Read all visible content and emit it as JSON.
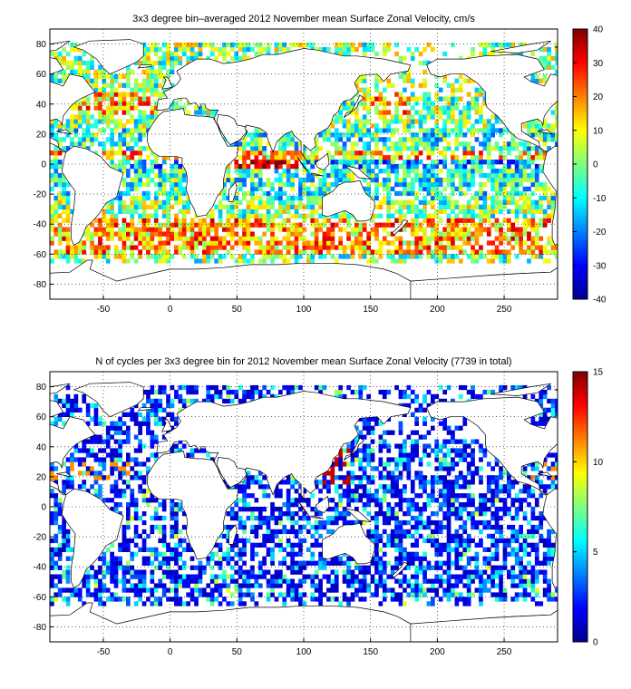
{
  "colors": {
    "jet": [
      "#00008F",
      "#0000FF",
      "#007FFF",
      "#00FFFF",
      "#7FFF7F",
      "#FFFF00",
      "#FF7F00",
      "#FF0000",
      "#7F0000"
    ],
    "land_outline": "#000000",
    "grid": "#000000"
  },
  "chart_data": [
    {
      "type": "heatmap",
      "title": "3x3 degree bin–averaged 2012 November mean Surface Zonal Velocity, cm/s",
      "xlim": [
        -90,
        290
      ],
      "ylim": [
        -90,
        90
      ],
      "x_ticks": [
        -50,
        0,
        50,
        100,
        150,
        200,
        250
      ],
      "y_ticks": [
        80,
        60,
        40,
        20,
        0,
        -20,
        -40,
        -60,
        -80
      ],
      "colorbar": {
        "min": -40,
        "max": 40,
        "ticks": [
          40,
          30,
          20,
          10,
          0,
          -10,
          -20,
          -30,
          -40
        ]
      },
      "grid": true,
      "bin_size_deg": 3,
      "field": "zonal_velocity"
    },
    {
      "type": "heatmap",
      "title": "N of cycles per 3x3 degree bin for 2012 November mean Surface Zonal Velocity (7739 in total)",
      "xlim": [
        -90,
        290
      ],
      "ylim": [
        -90,
        90
      ],
      "x_ticks": [
        -50,
        0,
        50,
        100,
        150,
        200,
        250
      ],
      "y_ticks": [
        80,
        60,
        40,
        20,
        0,
        -20,
        -40,
        -60,
        -80
      ],
      "colorbar": {
        "min": 0,
        "max": 15,
        "ticks": [
          15,
          10,
          5,
          0
        ]
      },
      "grid": true,
      "bin_size_deg": 3,
      "field": "cycle_count"
    }
  ]
}
